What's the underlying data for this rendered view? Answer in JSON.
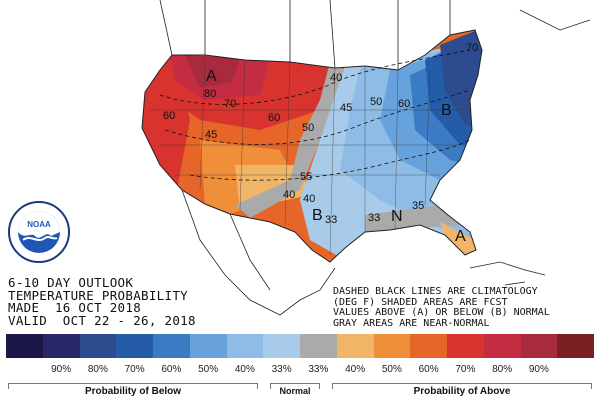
{
  "outlook": {
    "line1": "6-10 DAY OUTLOOK",
    "line2": "TEMPERATURE PROBABILITY",
    "line3": "MADE  16 OCT 2018",
    "line4": "VALID  OCT 22 - 26, 2018"
  },
  "notes": {
    "line1": "DASHED BLACK LINES ARE CLIMATOLOGY",
    "line2": "(DEG F) SHADED AREAS ARE FCST",
    "line3": "VALUES ABOVE (A) OR BELOW (B) NORMAL",
    "line4": "GRAY AREAS ARE NEAR-NORMAL"
  },
  "logo": {
    "text": "NOAA"
  },
  "map_labels": {
    "a_marker": "A",
    "b_east": "B",
    "b_south": "B",
    "n_marker": "N",
    "a_south": "A",
    "c80": "80",
    "c70": "70",
    "c60w": "60",
    "c45": "45",
    "c60": "60",
    "c50": "50",
    "c40n": "40",
    "c45e": "45",
    "c50e": "50",
    "c60e": "60",
    "c70e": "70",
    "c55": "55",
    "c40s": "40",
    "c33s": "33",
    "c33": "33",
    "c35": "35",
    "c40": "40"
  },
  "legend": {
    "colors": [
      "#1b1748",
      "#2a2868",
      "#2d4c8f",
      "#245ca8",
      "#3b7bc4",
      "#67a2dc",
      "#8ebce6",
      "#a9cbea",
      "#aaaaaa",
      "#f1b567",
      "#ef8f3a",
      "#e6662a",
      "#d8332e",
      "#c42c42",
      "#a82a3d",
      "#7a1f22"
    ],
    "labels": [
      "90%",
      "80%",
      "70%",
      "60%",
      "50%",
      "40%",
      "33%",
      "33%",
      "40%",
      "50%",
      "60%",
      "70%",
      "80%",
      "90%"
    ],
    "below_caption": "Probability of Below",
    "normal_caption": "Normal",
    "above_caption": "Probability of Above"
  }
}
